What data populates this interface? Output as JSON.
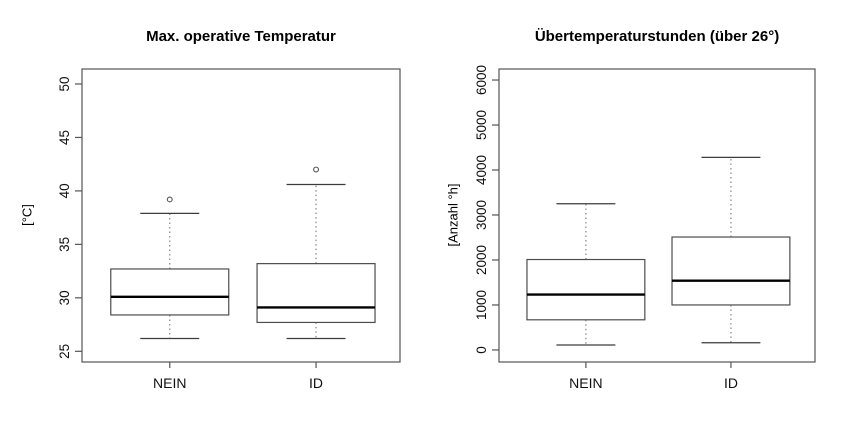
{
  "figure": {
    "background": "#ffffff",
    "frame_color": "#555555",
    "box_border_color": "#4d4d4d",
    "median_color": "#000000",
    "whisker_color": "#7a7a7a",
    "cap_color": "#3c3c3c",
    "outlier_color": "#555555",
    "tick_color": "#555555",
    "text_color": "#111111"
  },
  "chart_data": [
    {
      "type": "boxplot",
      "title": "Max. operative Temperatur",
      "ylabel": "[°C]",
      "xlabel": "",
      "ylim": [
        24.0,
        51.4
      ],
      "yticks": [
        25,
        30,
        35,
        40,
        45,
        50
      ],
      "categories": [
        "NEIN",
        "ID"
      ],
      "grid": false,
      "legend": null,
      "series": [
        {
          "category": "NEIN",
          "whisker_low": 26.2,
          "q1": 28.4,
          "median": 30.1,
          "q3": 32.7,
          "whisker_high": 37.9,
          "outliers": [
            39.2
          ]
        },
        {
          "category": "ID",
          "whisker_low": 26.2,
          "q1": 27.7,
          "median": 29.1,
          "q3": 33.2,
          "whisker_high": 40.6,
          "outliers": [
            42.0
          ]
        }
      ]
    },
    {
      "type": "boxplot",
      "title": "Übertemperaturstunden (über 26°)",
      "ylabel": "[Anzahl °h]",
      "xlabel": "",
      "ylim": [
        -268,
        6245
      ],
      "yticks": [
        0,
        1000,
        2000,
        3000,
        4000,
        5000,
        6000
      ],
      "categories": [
        "NEIN",
        "ID"
      ],
      "grid": false,
      "legend": null,
      "series": [
        {
          "category": "NEIN",
          "whisker_low": 110,
          "q1": 670,
          "median": 1230,
          "q3": 2010,
          "whisker_high": 3250,
          "outliers": []
        },
        {
          "category": "ID",
          "whisker_low": 160,
          "q1": 1000,
          "median": 1540,
          "q3": 2510,
          "whisker_high": 4280,
          "outliers": []
        }
      ]
    }
  ]
}
